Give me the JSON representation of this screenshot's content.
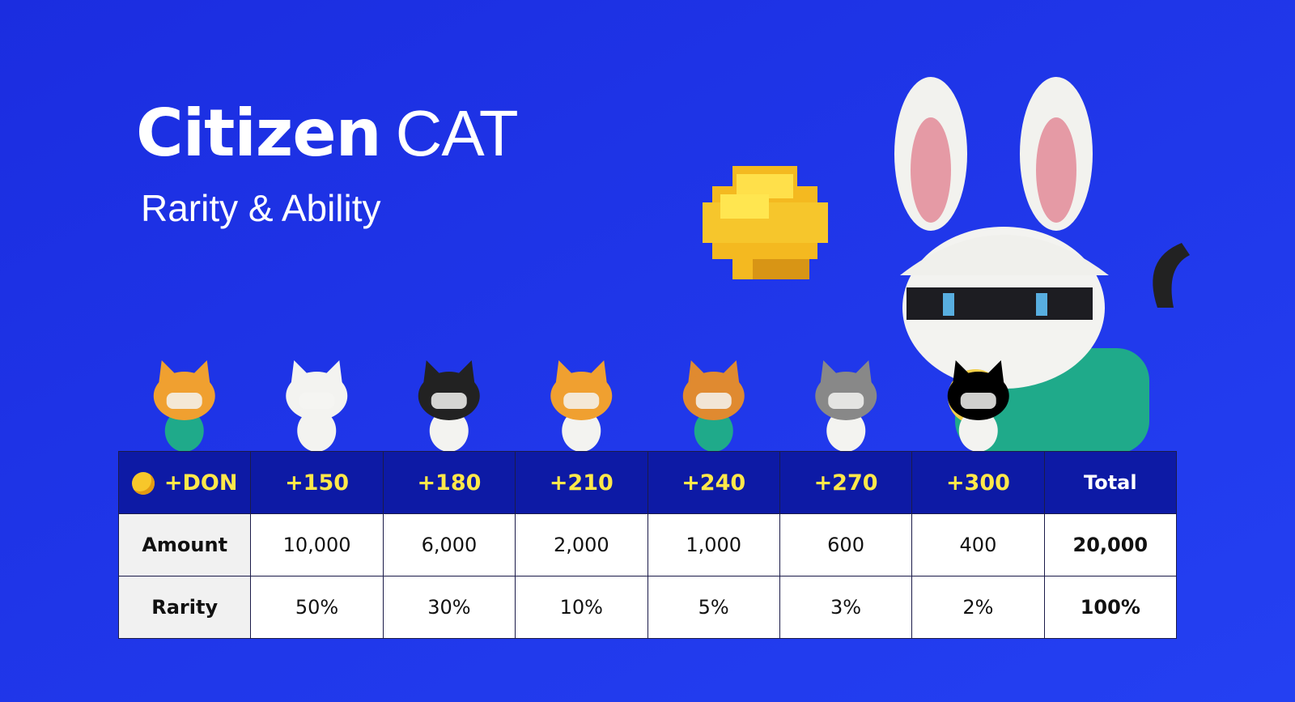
{
  "header": {
    "title_bold": "Citizen",
    "title_light": "CAT",
    "subtitle": "Rarity & Ability"
  },
  "table": {
    "header": [
      "+DON",
      "+150",
      "+180",
      "+210",
      "+240",
      "+270",
      "+300",
      "Total"
    ],
    "rows": [
      [
        "Amount",
        "10,000",
        "6,000",
        "2,000",
        "1,000",
        "600",
        "400",
        "20,000"
      ],
      [
        "Rarity",
        "50%",
        "30%",
        "10%",
        "5%",
        "3%",
        "2%",
        "100%"
      ]
    ]
  }
}
